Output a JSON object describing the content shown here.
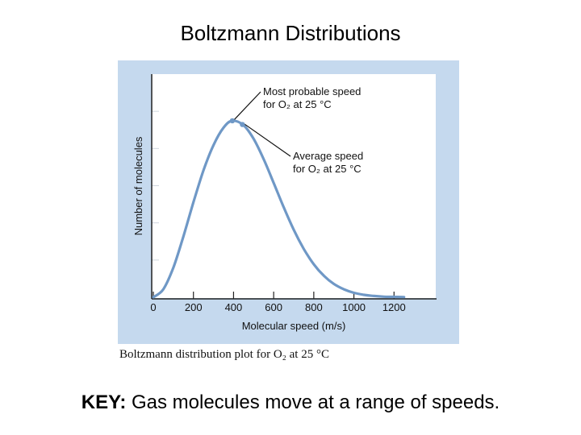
{
  "slide": {
    "title": "Boltzmann Distributions",
    "caption": "Boltzmann distribution plot for O₂ at 25 °C",
    "key_label": "KEY:",
    "key_text": " Gas molecules move at a range of speeds."
  },
  "colors": {
    "panel_bg": "#c5d9ee",
    "plot_bg": "#ffffff",
    "curve": "#6f98c6",
    "axis": "#222222"
  },
  "chart_data": {
    "type": "line",
    "xlabel": "Molecular speed (m/s)",
    "ylabel": "Number of molecules",
    "xlim": [
      0,
      1400
    ],
    "x_ticks": [
      0,
      200,
      400,
      600,
      800,
      1000,
      1200
    ],
    "x_tick_labels": [
      "0",
      "200",
      "400",
      "600",
      "800",
      "1000",
      "1200"
    ],
    "ylim": [
      0,
      1.2
    ],
    "grid": false,
    "series": [
      {
        "x": [
          0,
          50,
          100,
          150,
          200,
          250,
          300,
          350,
          394,
          450,
          500,
          550,
          600,
          650,
          700,
          750,
          800,
          850,
          900,
          950,
          1000,
          1050,
          1100,
          1150,
          1200,
          1250
        ],
        "y": [
          0,
          0.043,
          0.16,
          0.327,
          0.511,
          0.682,
          0.818,
          0.912,
          0.949,
          0.925,
          0.852,
          0.743,
          0.615,
          0.484,
          0.363,
          0.26,
          0.177,
          0.116,
          0.072,
          0.043,
          0.024,
          0.013,
          0.007,
          0.003,
          0.002,
          0.001
        ]
      }
    ],
    "annotations": [
      {
        "text_line1": "Most probable speed",
        "text_line2": "for O₂ at 25 °C",
        "x": 394,
        "y": 0.949
      },
      {
        "text_line1": "Average speed",
        "text_line2": "for O₂ at 25 °C",
        "x": 444,
        "y": 0.929
      }
    ]
  }
}
